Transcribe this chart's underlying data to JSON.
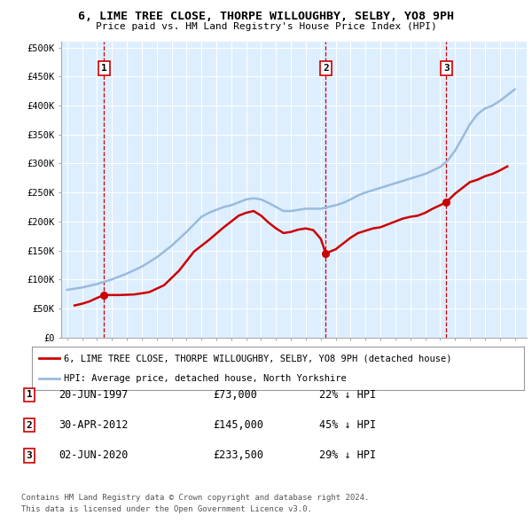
{
  "title1": "6, LIME TREE CLOSE, THORPE WILLOUGHBY, SELBY, YO8 9PH",
  "title2": "Price paid vs. HM Land Registry's House Price Index (HPI)",
  "legend1": "6, LIME TREE CLOSE, THORPE WILLOUGHBY, SELBY, YO8 9PH (detached house)",
  "legend2": "HPI: Average price, detached house, North Yorkshire",
  "ylabel_vals": [
    0,
    50000,
    100000,
    150000,
    200000,
    250000,
    300000,
    350000,
    400000,
    450000,
    500000
  ],
  "ylabel_labels": [
    "£0",
    "£50K",
    "£100K",
    "£150K",
    "£200K",
    "£250K",
    "£300K",
    "£350K",
    "£400K",
    "£450K",
    "£500K"
  ],
  "ylim": [
    0,
    510000
  ],
  "xlim": [
    1994.6,
    2025.8
  ],
  "purchase_dates": [
    1997.47,
    2012.33,
    2020.42
  ],
  "purchase_prices": [
    73000,
    145000,
    233500
  ],
  "purchase_labels": [
    "1",
    "2",
    "3"
  ],
  "dashed_line_color": "#cc0000",
  "sale_color": "#cc0000",
  "hpi_color": "#99bbdd",
  "background_color": "#ddeeff",
  "grid_color": "#ffffff",
  "footnote1": "Contains HM Land Registry data © Crown copyright and database right 2024.",
  "footnote2": "This data is licensed under the Open Government Licence v3.0.",
  "table_rows": [
    [
      "1",
      "20-JUN-1997",
      "£73,000",
      "22% ↓ HPI"
    ],
    [
      "2",
      "30-APR-2012",
      "£145,000",
      "45% ↓ HPI"
    ],
    [
      "3",
      "02-JUN-2020",
      "£233,500",
      "29% ↓ HPI"
    ]
  ],
  "years_hpi": [
    1995,
    1995.5,
    1996,
    1996.5,
    1997,
    1997.5,
    1998,
    1998.5,
    1999,
    1999.5,
    2000,
    2000.5,
    2001,
    2001.5,
    2002,
    2002.5,
    2003,
    2003.5,
    2004,
    2004.5,
    2005,
    2005.5,
    2006,
    2006.5,
    2007,
    2007.5,
    2008,
    2008.5,
    2009,
    2009.5,
    2010,
    2010.5,
    2011,
    2011.5,
    2012,
    2012.5,
    2013,
    2013.5,
    2014,
    2014.5,
    2015,
    2015.5,
    2016,
    2016.5,
    2017,
    2017.5,
    2018,
    2018.5,
    2019,
    2019.5,
    2020,
    2020.5,
    2021,
    2021.5,
    2022,
    2022.5,
    2023,
    2023.5,
    2024,
    2024.5,
    2025
  ],
  "hpi_values": [
    82000,
    84000,
    86000,
    89000,
    92000,
    96000,
    100000,
    105000,
    110000,
    116000,
    122000,
    130000,
    138000,
    148000,
    158000,
    170000,
    182000,
    195000,
    208000,
    215000,
    220000,
    225000,
    228000,
    233000,
    238000,
    240000,
    238000,
    232000,
    225000,
    218000,
    218000,
    220000,
    222000,
    222000,
    222000,
    225000,
    228000,
    232000,
    238000,
    245000,
    250000,
    254000,
    258000,
    262000,
    266000,
    270000,
    274000,
    278000,
    282000,
    288000,
    294000,
    305000,
    322000,
    345000,
    368000,
    385000,
    395000,
    400000,
    408000,
    418000,
    428000
  ],
  "years_red": [
    1995.5,
    1996.0,
    1996.5,
    1997.0,
    1997.47,
    1998.5,
    1999.5,
    2000.5,
    2001.5,
    2002.5,
    2003.5,
    2004.5,
    2005.5,
    2006.5,
    2007.0,
    2007.5,
    2008.0,
    2008.5,
    2009.0,
    2009.5,
    2010.0,
    2010.5,
    2011.0,
    2011.5,
    2012.0,
    2012.33,
    2013.0,
    2013.5,
    2014.0,
    2014.5,
    2015.0,
    2015.5,
    2016.0,
    2016.5,
    2017.0,
    2017.5,
    2018.0,
    2018.5,
    2019.0,
    2019.5,
    2020.0,
    2020.42,
    2021.0,
    2021.5,
    2022.0,
    2022.5,
    2023.0,
    2023.5,
    2024.0,
    2024.5
  ],
  "red_values": [
    55000,
    58000,
    62000,
    68000,
    73000,
    73000,
    74000,
    78000,
    90000,
    115000,
    148000,
    168000,
    190000,
    210000,
    215000,
    218000,
    210000,
    198000,
    188000,
    180000,
    182000,
    186000,
    188000,
    185000,
    170000,
    145000,
    152000,
    162000,
    172000,
    180000,
    184000,
    188000,
    190000,
    195000,
    200000,
    205000,
    208000,
    210000,
    215000,
    222000,
    228000,
    233500,
    248000,
    258000,
    268000,
    272000,
    278000,
    282000,
    288000,
    295000
  ]
}
